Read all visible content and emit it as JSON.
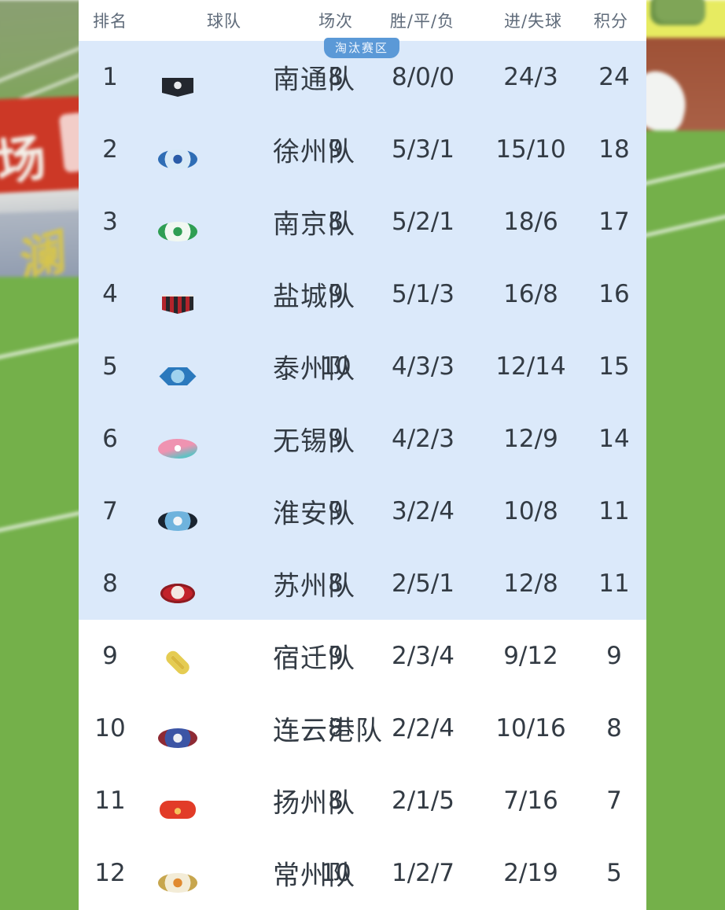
{
  "league_table": {
    "zone_badge_label": "淘汰赛区",
    "knockout_zone_rows": 8,
    "columns": {
      "rank": "排名",
      "team": "球队",
      "matches": "场次",
      "wdl": "胜/平/负",
      "goals": "进/失球",
      "points": "积分"
    },
    "rows": [
      {
        "rank": "1",
        "team": "南通队",
        "matches": "8",
        "wdl": "8/0/0",
        "goals": "24/3",
        "points": "24",
        "logo": {
          "name": "nantong-crest",
          "shape": "shield",
          "c1": "#23272e",
          "c2": "#e8eaec",
          "c3": "#3a3f47"
        }
      },
      {
        "rank": "2",
        "team": "徐州队",
        "matches": "9",
        "wdl": "5/3/1",
        "goals": "15/10",
        "points": "18",
        "logo": {
          "name": "xuzhou-crest",
          "shape": "circle",
          "c1": "#2f6db5",
          "c2": "#d7e9f7",
          "c3": "#2a5ca8"
        }
      },
      {
        "rank": "3",
        "team": "南京队",
        "matches": "8",
        "wdl": "5/2/1",
        "goals": "18/6",
        "points": "17",
        "logo": {
          "name": "nanjing-crest",
          "shape": "circle",
          "c1": "#2f9e53",
          "c2": "#f1f8f1",
          "c3": "#2f9e53"
        }
      },
      {
        "rank": "4",
        "team": "盐城队",
        "matches": "9",
        "wdl": "5/1/3",
        "goals": "16/8",
        "points": "16",
        "logo": {
          "name": "yancheng-crest",
          "shape": "shield-stripes",
          "c1": "#b3242b",
          "c2": "#26262a",
          "c3": "#e9e6e2"
        }
      },
      {
        "rank": "5",
        "team": "泰州队",
        "matches": "10",
        "wdl": "4/3/3",
        "goals": "12/14",
        "points": "15",
        "logo": {
          "name": "taizhou-crest",
          "shape": "hexagon",
          "c1": "#2b79bd",
          "c2": "#9fd2ee",
          "c3": "#1b5e9e"
        }
      },
      {
        "rank": "6",
        "team": "无锡队",
        "matches": "9",
        "wdl": "4/2/3",
        "goals": "12/9",
        "points": "14",
        "logo": {
          "name": "wuxi-crest",
          "shape": "flower",
          "c1": "#ef93b1",
          "c2": "#5fc2c4",
          "c3": "#ffffff"
        }
      },
      {
        "rank": "7",
        "team": "淮安队",
        "matches": "9",
        "wdl": "3/2/4",
        "goals": "10/8",
        "points": "11",
        "logo": {
          "name": "huaian-crest",
          "shape": "circle",
          "c1": "#1a2430",
          "c2": "#6fb3dd",
          "c3": "#f0f4f8"
        }
      },
      {
        "rank": "8",
        "team": "苏州队",
        "matches": "8",
        "wdl": "2/5/1",
        "goals": "12/8",
        "points": "11",
        "logo": {
          "name": "suzhou-crest",
          "shape": "oval",
          "c1": "#c2222a",
          "c2": "#f3e8e2",
          "c3": "#8e1b21"
        }
      },
      {
        "rank": "9",
        "team": "宿迁队",
        "matches": "9",
        "wdl": "2/3/4",
        "goals": "9/12",
        "points": "9",
        "logo": {
          "name": "suqian-crest",
          "shape": "diamond",
          "c1": "#e5cc52",
          "c2": "#fdfbef",
          "c3": "#d9b93e"
        }
      },
      {
        "rank": "10",
        "team": "连云港队",
        "matches": "8",
        "wdl": "2/2/4",
        "goals": "10/16",
        "points": "8",
        "logo": {
          "name": "lianyungang-crest",
          "shape": "circle",
          "c1": "#8e2a34",
          "c2": "#3c55a5",
          "c3": "#eef0f4"
        }
      },
      {
        "rank": "11",
        "team": "扬州队",
        "matches": "8",
        "wdl": "2/1/5",
        "goals": "7/16",
        "points": "7",
        "logo": {
          "name": "yangzhou-crest",
          "shape": "rounded-square",
          "c1": "#e23c28",
          "c2": "#f6c25c",
          "c3": "#c82d1e"
        }
      },
      {
        "rank": "12",
        "team": "常州队",
        "matches": "10",
        "wdl": "1/2/7",
        "goals": "2/19",
        "points": "5",
        "logo": {
          "name": "changzhou-crest",
          "shape": "circle",
          "c1": "#c7a64e",
          "c2": "#f3ecd7",
          "c3": "#e08a30"
        }
      }
    ]
  },
  "background": {
    "left_red_board_text": "场",
    "left_gray_board_text": "澜"
  },
  "colors": {
    "panel_bg": "#ffffff",
    "zone_bg": "#dbe9fa",
    "badge_bg": "#5b99d7",
    "badge_text": "#f0f7ff",
    "header_text": "#5f6b7a",
    "row_text": "#333b44",
    "grass": "#74b04a",
    "red_board": "#cc3826",
    "yellow_board": "#e7eb61",
    "board_text_yellow": "#d5c44e"
  }
}
